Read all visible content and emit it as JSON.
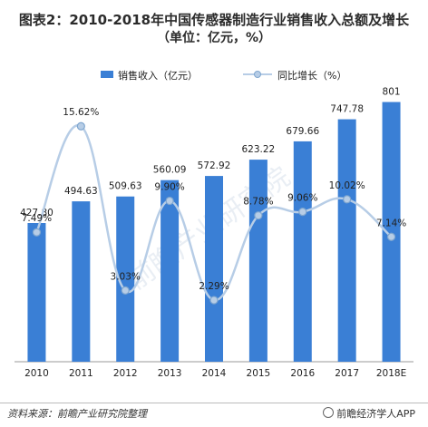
{
  "title": "图表2：2010-2018年中国传感器制造行业销售收入总额及增长",
  "subtitle": "（单位：亿元，%）",
  "source": "资料来源：前瞻产业研究院整理",
  "brand": "前瞻经济学人APP",
  "watermark": "前瞻产业研究院",
  "colors": {
    "bar": "#3a7fd5",
    "line": "#b7cde6",
    "point_fill": "#b7cde6",
    "point_stroke": "#7fa6cf"
  },
  "chart_data": {
    "type": "bar",
    "categories": [
      "2010",
      "2011",
      "2012",
      "2013",
      "2014",
      "2015",
      "2016",
      "2017",
      "2018E"
    ],
    "series": [
      {
        "name": "销售收入（亿元）",
        "type": "bar",
        "axis": "left",
        "values": [
          427.8,
          494.63,
          509.63,
          560.09,
          572.92,
          623.22,
          679.66,
          747.78,
          801
        ],
        "labels": [
          "427.80",
          "494.63",
          "509.63",
          "560.09",
          "572.92",
          "623.22",
          "679.66",
          "747.78",
          "801"
        ]
      },
      {
        "name": "同比增长（%）",
        "type": "line",
        "axis": "right",
        "values": [
          7.49,
          15.62,
          3.03,
          9.9,
          2.29,
          8.78,
          9.06,
          10.02,
          7.14
        ],
        "labels": [
          "7.49%",
          "15.62%",
          "3.03%",
          "9.90%",
          "2.29%",
          "8.78%",
          "9.06%",
          "10.02%",
          "7.14%"
        ]
      }
    ],
    "legend": {
      "position": "top",
      "bar_label": "销售收入（亿元）",
      "line_label": "同比增长（%）"
    },
    "ylim": [
      0,
      850
    ],
    "y2lim": [
      0,
      18
    ],
    "grid": false
  }
}
